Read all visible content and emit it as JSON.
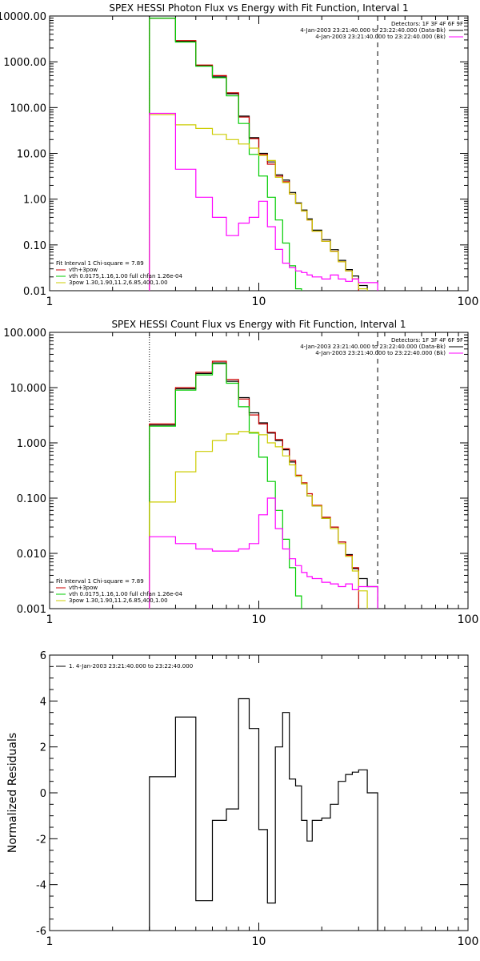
{
  "chart_data": [
    {
      "type": "line",
      "title": "SPEX HESSI Photon Flux vs Energy with Fit Function, Interval 1",
      "xlabel": "",
      "ylabel": "",
      "xscale": "log",
      "yscale": "log",
      "xlim": [
        1,
        100
      ],
      "ylim": [
        0.01,
        10000
      ],
      "x_tick_labels": [
        "1",
        "10",
        "100"
      ],
      "x_tick_values": [
        1,
        10,
        100
      ],
      "y_tick_labels": [
        "0.01",
        "0.10",
        "1.00",
        "10.00",
        "100.00",
        "1000.00",
        "10000.00"
      ],
      "y_tick_values": [
        0.01,
        0.1,
        1,
        10,
        100,
        1000,
        10000
      ],
      "legend_right": {
        "header": "Detectors: 1F 3F 4F 6F 9F",
        "entries": [
          {
            "text": "4-Jan-2003 23:21:40.000 to 23:22:40.000 (Data-Bk)",
            "color": "#000000"
          },
          {
            "text": "4-Jan-2003 23:21:40.000 to 23:22:40.000 (Bk)",
            "color": "#ff00ff"
          }
        ]
      },
      "legend_left": {
        "header": "Fit Interval 1     Chi-square = 7.89",
        "entries": [
          {
            "text": "vth+3pow",
            "color": "#cc0000"
          },
          {
            "text": "vth 0.0175,1.16,1.00  full chfan 1.26e-04",
            "color": "#00cc00"
          },
          {
            "text": "3pow 1.30,1.90,11.2,6.85,400,1.00",
            "color": "#cccc00"
          }
        ]
      },
      "vlines": [
        {
          "x": 3.0,
          "style": "dotted"
        },
        {
          "x": 37.0,
          "style": "dashed"
        }
      ],
      "bin_edges": [
        3.0,
        4.0,
        5.0,
        6.0,
        7.0,
        8.0,
        9.0,
        10.0,
        11.0,
        12.0,
        13.0,
        14.0,
        15.0,
        16.0,
        17.0,
        18.0,
        20.0,
        22.0,
        24.0,
        26.0,
        28.0,
        30.0,
        33.0,
        37.0
      ],
      "series": [
        {
          "name": "data",
          "color": "#000000",
          "values": [
            9000,
            2800,
            820,
            470,
            200,
            65,
            22,
            10,
            6.5,
            3.4,
            2.6,
            1.4,
            0.83,
            0.58,
            0.37,
            0.21,
            0.13,
            0.079,
            0.046,
            0.029,
            0.021,
            0.013,
            null
          ]
        },
        {
          "name": "vth+3pow",
          "color": "#cc0000",
          "values": [
            9000,
            2900,
            850,
            500,
            210,
            62,
            21,
            9.5,
            5.8,
            3.2,
            2.4,
            1.3,
            0.8,
            0.55,
            0.35,
            0.2,
            0.12,
            0.073,
            0.043,
            0.027,
            0.018,
            null,
            null
          ]
        },
        {
          "name": "vth",
          "color": "#00cc00",
          "values": [
            9000,
            2700,
            800,
            450,
            180,
            45,
            9.5,
            3.2,
            1.1,
            0.35,
            0.11,
            0.035,
            0.011,
            null,
            null,
            null,
            null,
            null,
            null,
            null,
            null,
            null,
            null
          ]
        },
        {
          "name": "3pow",
          "color": "#cccc00",
          "values": [
            70,
            42,
            35,
            26,
            20,
            16,
            13,
            9.0,
            7.0,
            3.0,
            2.3,
            1.3,
            0.8,
            0.55,
            0.35,
            0.2,
            0.12,
            0.072,
            0.043,
            0.027,
            0.018,
            0.011,
            null
          ]
        },
        {
          "name": "Bk",
          "color": "#ff00ff",
          "values": [
            75,
            4.5,
            1.1,
            0.4,
            0.16,
            0.3,
            0.4,
            0.9,
            0.25,
            0.08,
            0.04,
            0.032,
            0.027,
            0.025,
            0.022,
            0.02,
            0.018,
            0.022,
            0.018,
            0.016,
            0.018,
            0.015,
            0.015
          ]
        }
      ]
    },
    {
      "type": "line",
      "title": "SPEX HESSI Count Flux vs Energy with Fit Function, Interval 1",
      "xlabel": "",
      "ylabel": "",
      "xscale": "log",
      "yscale": "log",
      "xlim": [
        1,
        100
      ],
      "ylim": [
        0.001,
        100
      ],
      "x_tick_labels": [
        "1",
        "10",
        "100"
      ],
      "x_tick_values": [
        1,
        10,
        100
      ],
      "y_tick_labels": [
        "0.001",
        "0.010",
        "0.100",
        "1.000",
        "10.000",
        "100.000"
      ],
      "y_tick_values": [
        0.001,
        0.01,
        0.1,
        1,
        10,
        100
      ],
      "legend_right": {
        "header": "Detectors: 1F 3F 4F 6F 9F",
        "entries": [
          {
            "text": "4-Jan-2003 23:21:40.000 to 23:22:40.000 (Data-Bk)",
            "color": "#000000"
          },
          {
            "text": "4-Jan-2003 23:21:40.000 to 23:22:40.000 (Bk)",
            "color": "#ff00ff"
          }
        ]
      },
      "legend_left": {
        "header": "Fit Interval 1     Chi-square = 7.89",
        "entries": [
          {
            "text": "vth+3pow",
            "color": "#cc0000"
          },
          {
            "text": "vth 0.0175,1.16,1.00  full chfan 1.26e-04",
            "color": "#00cc00"
          },
          {
            "text": "3pow 1.30,1.90,11.2,6.85,400,1.00",
            "color": "#cccc00"
          }
        ]
      },
      "vlines": [
        {
          "x": 3.0,
          "style": "dotted"
        },
        {
          "x": 37.0,
          "style": "dashed"
        }
      ],
      "bin_edges": [
        3.0,
        4.0,
        5.0,
        6.0,
        7.0,
        8.0,
        9.0,
        10.0,
        11.0,
        12.0,
        13.0,
        14.0,
        15.0,
        16.0,
        17.0,
        18.0,
        20.0,
        22.0,
        24.0,
        26.0,
        28.0,
        30.0,
        33.0,
        37.0
      ],
      "series": [
        {
          "name": "data",
          "color": "#000000",
          "values": [
            2.1,
            9.5,
            18,
            28,
            13,
            6.6,
            3.5,
            2.3,
            1.5,
            1.1,
            0.75,
            0.45,
            0.25,
            0.18,
            0.11,
            0.072,
            0.043,
            0.03,
            0.016,
            0.0095,
            0.0053,
            0.0035,
            0.0025
          ]
        },
        {
          "name": "vth+3pow",
          "color": "#cc0000",
          "values": [
            2.2,
            10,
            19,
            30,
            14,
            6.2,
            3.2,
            2.2,
            1.55,
            1.15,
            0.78,
            0.48,
            0.26,
            0.19,
            0.12,
            0.074,
            0.045,
            0.03,
            0.016,
            0.0092,
            0.0055,
            null,
            null
          ]
        },
        {
          "name": "vth",
          "color": "#00cc00",
          "values": [
            2.0,
            9.0,
            17,
            27,
            12,
            4.5,
            1.5,
            0.55,
            0.2,
            0.06,
            0.018,
            0.0055,
            0.0017,
            null,
            null,
            null,
            null,
            null,
            null,
            null,
            null,
            null,
            null
          ]
        },
        {
          "name": "3pow",
          "color": "#cccc00",
          "values": [
            0.085,
            0.3,
            0.7,
            1.1,
            1.45,
            1.6,
            1.55,
            1.4,
            1.0,
            0.85,
            0.58,
            0.4,
            0.25,
            0.18,
            0.11,
            0.072,
            0.043,
            0.028,
            0.015,
            0.0088,
            0.0048,
            0.0021,
            null
          ]
        },
        {
          "name": "Bk",
          "color": "#ff00ff",
          "values": [
            0.02,
            0.015,
            0.012,
            0.011,
            0.011,
            0.012,
            0.015,
            0.05,
            0.1,
            0.028,
            0.012,
            0.008,
            0.006,
            0.0045,
            0.0038,
            0.0035,
            0.003,
            0.0028,
            0.0025,
            0.0028,
            0.0022,
            0.0025,
            0.0025
          ]
        }
      ]
    },
    {
      "type": "line",
      "title": "",
      "xlabel": "",
      "ylabel": "Normalized Residuals",
      "xscale": "log",
      "yscale": "linear",
      "xlim": [
        1,
        100
      ],
      "ylim": [
        -6,
        6
      ],
      "x_tick_labels": [
        "1",
        "10",
        "100"
      ],
      "x_tick_values": [
        1,
        10,
        100
      ],
      "y_tick_labels": [
        "6",
        "4",
        "2",
        "0",
        "-2",
        "-4",
        "-6"
      ],
      "y_tick_values": [
        6,
        4,
        2,
        0,
        -2,
        -4,
        -6
      ],
      "legend_left": {
        "header": "",
        "entries": [
          {
            "text": "1.  4-Jan-2003 23:21:40.000 to 23:22:40.000",
            "color": "#000000"
          }
        ]
      },
      "bin_edges": [
        3.0,
        4.0,
        5.0,
        6.0,
        7.0,
        8.0,
        9.0,
        10.0,
        11.0,
        12.0,
        13.0,
        14.0,
        15.0,
        16.0,
        17.0,
        18.0,
        20.0,
        22.0,
        24.0,
        26.0,
        28.0,
        30.0,
        33.0,
        37.0
      ],
      "series": [
        {
          "name": "residuals",
          "color": "#000000",
          "values": [
            0.7,
            3.3,
            -4.7,
            -1.2,
            -0.7,
            4.1,
            2.8,
            -1.6,
            -4.8,
            2.0,
            3.5,
            0.6,
            0.3,
            -1.2,
            -2.1,
            -1.2,
            -1.1,
            -0.5,
            0.5,
            0.8,
            0.9,
            1.0,
            0.0
          ]
        }
      ]
    }
  ]
}
